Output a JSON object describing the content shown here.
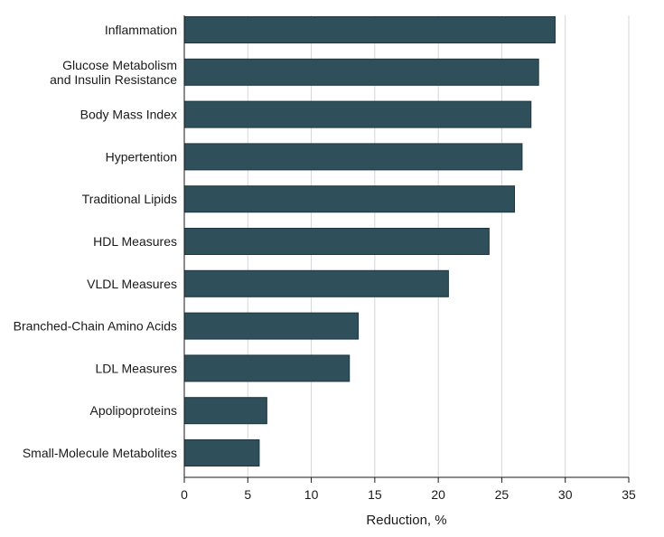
{
  "chart_data": {
    "type": "bar",
    "orientation": "horizontal",
    "categories": [
      "Inflammation",
      [
        "Glucose Metabolism",
        "and Insulin Resistance"
      ],
      "Body Mass Index",
      "Hypertention",
      "Traditional Lipids",
      "HDL Measures",
      "VLDL Measures",
      "Branched-Chain Amino Acids",
      "LDL Measures",
      "Apolipoproteins",
      "Small-Molecule Metabolites"
    ],
    "values": [
      29.2,
      27.9,
      27.3,
      26.6,
      26.0,
      24.0,
      20.8,
      13.7,
      13.0,
      6.5,
      5.9
    ],
    "xlabel": "Reduction, %",
    "ylabel": "",
    "xlim": [
      0,
      35
    ],
    "xticks": [
      0,
      5,
      10,
      15,
      20,
      25,
      30,
      35
    ],
    "grid": "vertical",
    "colors": {
      "bar": "#2f4f5a",
      "bar_edge": "#1b3640",
      "grid": "#d6d6d6"
    }
  }
}
